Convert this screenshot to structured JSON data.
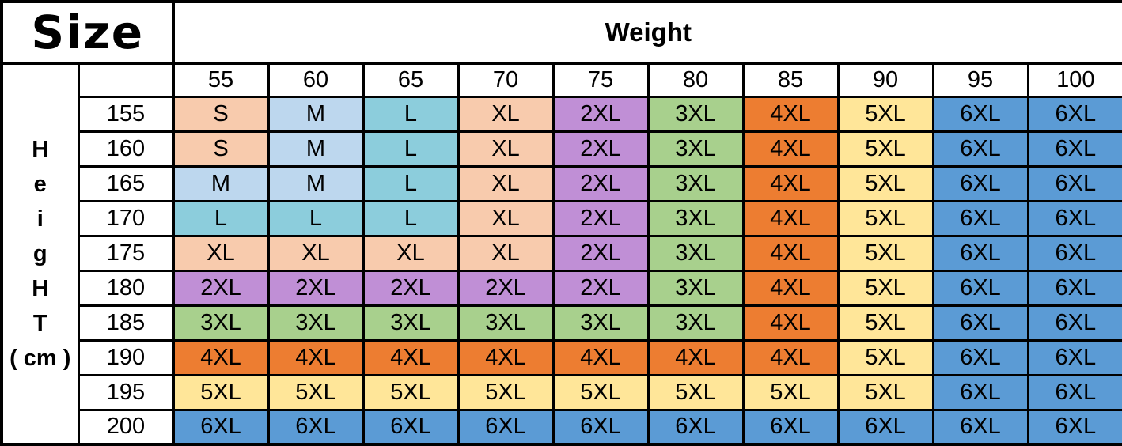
{
  "chart_data": {
    "type": "table",
    "corner_label": "Size",
    "column_group_label": "Weight",
    "row_group_label_lines": [
      "H",
      "e",
      "i",
      "g",
      "H",
      "T",
      "( cm )"
    ],
    "columns": [
      "55",
      "60",
      "65",
      "70",
      "75",
      "80",
      "85",
      "90",
      "95",
      "100"
    ],
    "rows": [
      {
        "height": "155",
        "sizes": [
          "S",
          "M",
          "L",
          "XL",
          "2XL",
          "3XL",
          "4XL",
          "5XL",
          "6XL",
          "6XL"
        ]
      },
      {
        "height": "160",
        "sizes": [
          "S",
          "M",
          "L",
          "XL",
          "2XL",
          "3XL",
          "4XL",
          "5XL",
          "6XL",
          "6XL"
        ]
      },
      {
        "height": "165",
        "sizes": [
          "M",
          "M",
          "L",
          "XL",
          "2XL",
          "3XL",
          "4XL",
          "5XL",
          "6XL",
          "6XL"
        ]
      },
      {
        "height": "170",
        "sizes": [
          "L",
          "L",
          "L",
          "XL",
          "2XL",
          "3XL",
          "4XL",
          "5XL",
          "6XL",
          "6XL"
        ]
      },
      {
        "height": "175",
        "sizes": [
          "XL",
          "XL",
          "XL",
          "XL",
          "2XL",
          "3XL",
          "4XL",
          "5XL",
          "6XL",
          "6XL"
        ]
      },
      {
        "height": "180",
        "sizes": [
          "2XL",
          "2XL",
          "2XL",
          "2XL",
          "2XL",
          "3XL",
          "4XL",
          "5XL",
          "6XL",
          "6XL"
        ]
      },
      {
        "height": "185",
        "sizes": [
          "3XL",
          "3XL",
          "3XL",
          "3XL",
          "3XL",
          "3XL",
          "4XL",
          "5XL",
          "6XL",
          "6XL"
        ]
      },
      {
        "height": "190",
        "sizes": [
          "4XL",
          "4XL",
          "4XL",
          "4XL",
          "4XL",
          "4XL",
          "4XL",
          "5XL",
          "6XL",
          "6XL"
        ]
      },
      {
        "height": "195",
        "sizes": [
          "5XL",
          "5XL",
          "5XL",
          "5XL",
          "5XL",
          "5XL",
          "5XL",
          "5XL",
          "6XL",
          "6XL"
        ]
      },
      {
        "height": "200",
        "sizes": [
          "6XL",
          "6XL",
          "6XL",
          "6XL",
          "6XL",
          "6XL",
          "6XL",
          "6XL",
          "6XL",
          "6XL"
        ]
      }
    ],
    "size_colors": {
      "S": "#F8CBAD",
      "M": "#BDD7EE",
      "L": "#8CCDDC",
      "XL": "#F8CBAD",
      "2XL": "#C08FD6",
      "3XL": "#A8D08D",
      "4XL": "#ED7D31",
      "5XL": "#FFE699",
      "6XL": "#5B9BD5"
    },
    "text_color": "#000000",
    "grid_color": "#000000",
    "background_color": "#FFFFFF"
  }
}
